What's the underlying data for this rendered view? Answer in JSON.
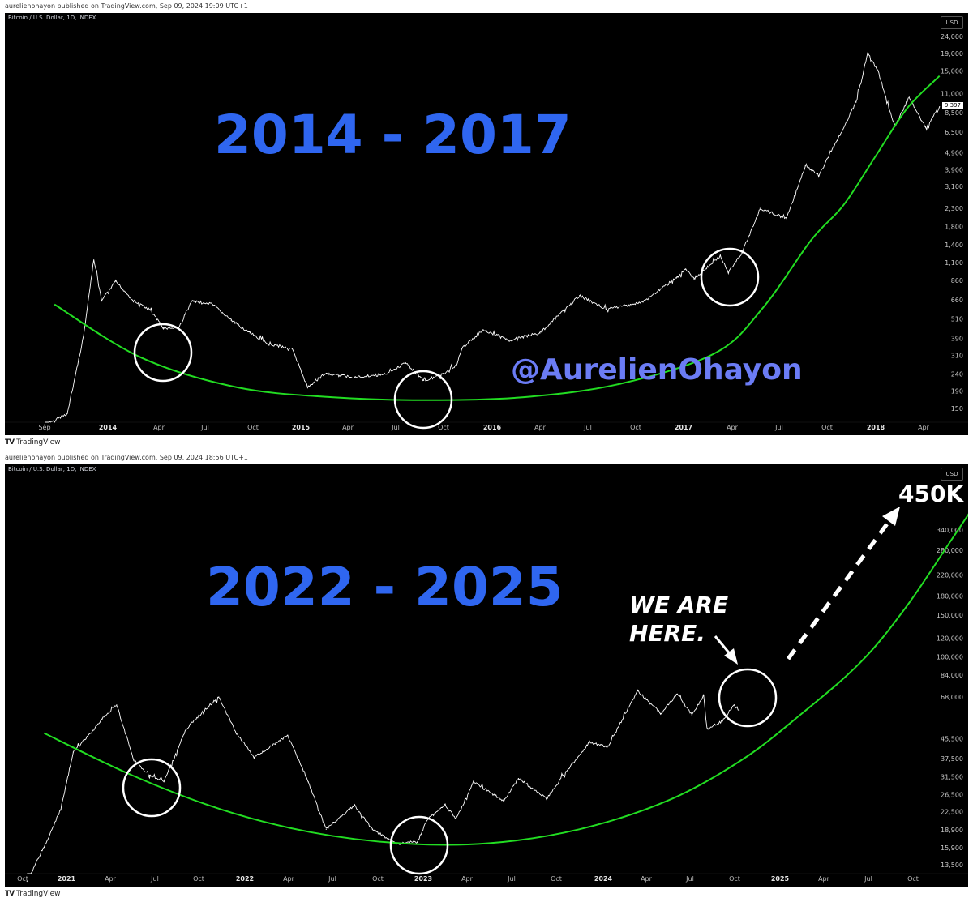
{
  "panels": [
    {
      "published": "aurelienohayon published on TradingView.com, Sep 09, 2024 19:09 UTC+1",
      "symbol": "Bitcoin / U.S. Dollar, 1D, INDEX",
      "currency": "USD",
      "headline": "2014 - 2017",
      "handle": "@AurelienOhayon",
      "last_price": "9,397",
      "brand": "TradingView"
    },
    {
      "published": "aurelienohayon published on TradingView.com, Sep 09, 2024 18:56 UTC+1",
      "symbol": "Bitcoin / U.S. Dollar, 1D, INDEX",
      "currency": "USD",
      "headline": "2022 - 2025",
      "note_line1": "WE ARE",
      "note_line2": "HERE.",
      "target": "450K",
      "brand": "TradingView"
    }
  ],
  "colors": {
    "panel_bg": "#000000",
    "price_line": "#ffffff",
    "curve": "#22dd22",
    "headline": "#2f66f0",
    "handle": "#6b7cf5"
  },
  "icons": [
    "tradingview-logo-icon",
    "arrow-icon",
    "dashed-arrow-icon",
    "circle-marker-icon"
  ],
  "chart_data": [
    {
      "type": "line",
      "scale": "log",
      "xticks": [
        "Sep",
        "2014",
        "Apr",
        "Jul",
        "Oct",
        "2015",
        "Apr",
        "Jul",
        "Oct",
        "2016",
        "Apr",
        "Jul",
        "Oct",
        "2017",
        "Apr",
        "Jul",
        "Oct",
        "2018",
        "Apr"
      ],
      "yticks": [
        24000,
        19000,
        15000,
        11000,
        8500,
        6500,
        4900,
        3900,
        3100,
        2300,
        1800,
        1400,
        1100,
        860,
        660,
        510,
        390,
        310,
        240,
        190,
        150
      ],
      "ylim": [
        130,
        30000
      ],
      "x_dates": [
        "2013-09-01",
        "2013-10-15",
        "2013-11-15",
        "2013-12-05",
        "2013-12-20",
        "2014-01-15",
        "2014-02-15",
        "2014-03-15",
        "2014-04-10",
        "2014-05-10",
        "2014-06-05",
        "2014-07-15",
        "2014-08-20",
        "2014-09-25",
        "2014-11-01",
        "2014-12-15",
        "2015-01-14",
        "2015-02-15",
        "2015-04-15",
        "2015-06-15",
        "2015-07-20",
        "2015-08-24",
        "2015-09-25",
        "2015-10-25",
        "2015-11-05",
        "2015-12-15",
        "2016-02-01",
        "2016-04-01",
        "2016-06-15",
        "2016-08-05",
        "2016-10-15",
        "2016-12-20",
        "2017-01-05",
        "2017-01-20",
        "2017-03-10",
        "2017-03-25",
        "2017-04-20",
        "2017-05-25",
        "2017-07-15",
        "2017-08-20",
        "2017-09-15",
        "2017-10-20",
        "2017-11-25",
        "2017-12-17",
        "2018-01-05",
        "2018-02-06",
        "2018-03-05",
        "2018-04-05",
        "2018-05-01"
      ],
      "series": [
        {
          "values": [
            120,
            140,
            400,
            1150,
            650,
            850,
            650,
            580,
            450,
            450,
            650,
            620,
            500,
            420,
            360,
            340,
            200,
            240,
            230,
            240,
            280,
            220,
            235,
            270,
            340,
            440,
            380,
            420,
            700,
            580,
            640,
            900,
            1000,
            880,
            1200,
            960,
            1250,
            2300,
            2000,
            4100,
            3600,
            5800,
            9800,
            19000,
            15000,
            7000,
            10500,
            6900,
            9200
          ]
        },
        {
          "values": [
            620,
            300,
            200,
            175,
            168,
            175,
            210,
            320,
            600,
            1500,
            2400,
            4700,
            9000,
            14000
          ]
        }
      ],
      "series_dates_curve": [
        "2013-09-20",
        "2014-03-01",
        "2014-09-01",
        "2015-03-01",
        "2015-09-01",
        "2016-03-01",
        "2016-09-01",
        "2017-03-01",
        "2017-06-01",
        "2017-09-01",
        "2017-11-01",
        "2018-01-01",
        "2018-03-01",
        "2018-05-01"
      ],
      "annotations": [
        "2014 - 2017",
        "@AurelienOhayon"
      ]
    },
    {
      "type": "line",
      "scale": "log",
      "xticks": [
        "Oct",
        "2021",
        "Apr",
        "Jul",
        "Oct",
        "2022",
        "Apr",
        "Jul",
        "Oct",
        "2023",
        "Apr",
        "Jul",
        "Oct",
        "2024",
        "Apr",
        "Jul",
        "Oct",
        "2025",
        "Apr",
        "Jul",
        "Oct"
      ],
      "yticks": [
        340000,
        280000,
        220000,
        180000,
        150000,
        120000,
        100000,
        84000,
        68000,
        45500,
        37500,
        31500,
        26500,
        22500,
        18900,
        15900,
        13500
      ],
      "ylim": [
        12500,
        520000
      ],
      "x_dates": [
        "2020-10-10",
        "2020-11-15",
        "2020-12-20",
        "2021-01-15",
        "2021-02-20",
        "2021-03-15",
        "2021-04-14",
        "2021-05-19",
        "2021-06-20",
        "2021-07-20",
        "2021-09-05",
        "2021-10-20",
        "2021-11-10",
        "2021-12-15",
        "2022-01-20",
        "2022-03-30",
        "2022-05-12",
        "2022-06-18",
        "2022-08-15",
        "2022-09-20",
        "2022-11-09",
        "2022-12-20",
        "2023-01-10",
        "2023-02-15",
        "2023-03-10",
        "2023-04-14",
        "2023-06-15",
        "2023-07-15",
        "2023-09-11",
        "2023-10-25",
        "2023-12-05",
        "2024-01-10",
        "2024-03-14",
        "2024-05-01",
        "2024-06-05",
        "2024-07-05",
        "2024-07-29",
        "2024-08-05",
        "2024-09-06",
        "2024-09-30",
        "2024-10-10"
      ],
      "series": [
        {
          "values": [
            11500,
            16000,
            23000,
            40000,
            48000,
            55000,
            63000,
            37000,
            32000,
            30000,
            50000,
            62000,
            68000,
            48000,
            38000,
            47000,
            30000,
            19000,
            24000,
            19000,
            16500,
            16800,
            21000,
            24000,
            21000,
            30000,
            25000,
            31000,
            25500,
            34000,
            44000,
            42000,
            72000,
            58000,
            70000,
            57000,
            69000,
            50000,
            54000,
            63000,
            60000
          ]
        },
        {
          "values": [
            48000,
            32000,
            23000,
            18500,
            16600,
            16600,
            19000,
            25000,
            37000,
            58000,
            95000,
            160000,
            300000,
            420000
          ]
        }
      ],
      "series_dates_curve": [
        "2020-11-15",
        "2021-05-15",
        "2021-11-15",
        "2022-05-15",
        "2022-11-15",
        "2023-05-15",
        "2023-11-15",
        "2024-05-15",
        "2024-10-15",
        "2025-02-15",
        "2025-06-15",
        "2025-09-15",
        "2025-12-15",
        "2026-02-01"
      ],
      "annotations": [
        "2022 - 2025",
        "WE ARE",
        "HERE.",
        "450K"
      ]
    }
  ]
}
